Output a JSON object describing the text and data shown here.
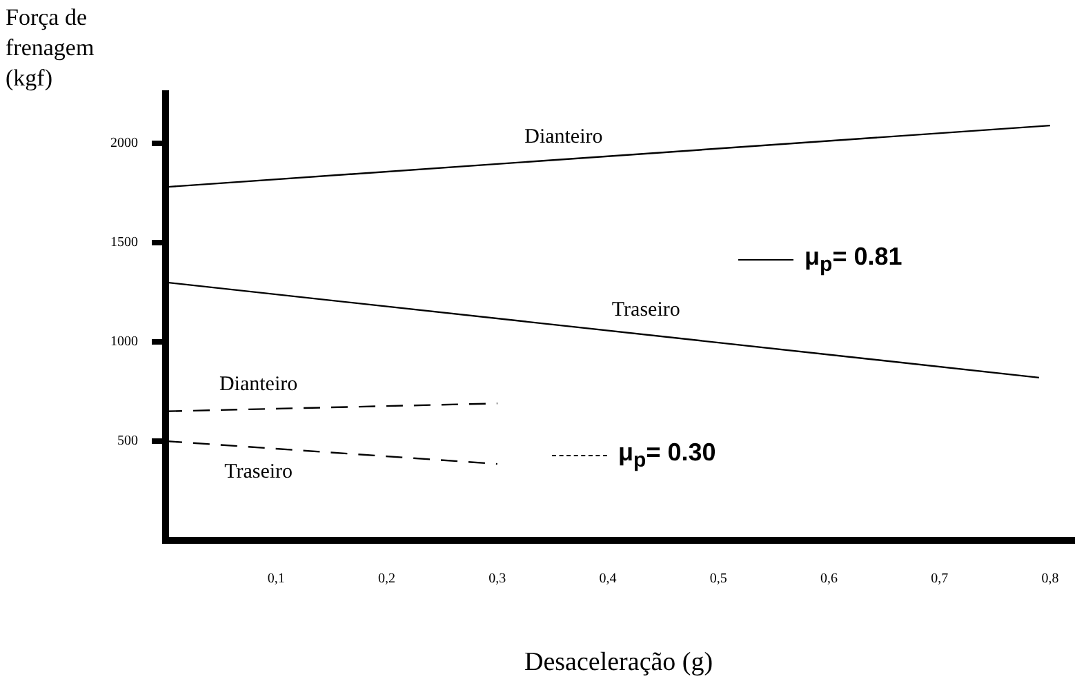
{
  "chart_data": {
    "type": "line",
    "xlabel": "Desaceleração  (g)",
    "ylabel": "Força de frenagem (kgf)",
    "xlim": [
      0,
      0.82
    ],
    "xticks": [
      {
        "value": 0.1,
        "label": "0,1"
      },
      {
        "value": 0.2,
        "label": "0,2"
      },
      {
        "value": 0.3,
        "label": "0,3"
      },
      {
        "value": 0.4,
        "label": "0,4"
      },
      {
        "value": 0.5,
        "label": "0,5"
      },
      {
        "value": 0.6,
        "label": "0,6"
      },
      {
        "value": 0.7,
        "label": "0,7"
      },
      {
        "value": 0.8,
        "label": "0,8"
      }
    ],
    "ylim": [
      0,
      2250
    ],
    "yticks": [
      500,
      1000,
      1500,
      2000
    ],
    "grid": false,
    "legend": false,
    "marker": "none",
    "series": [
      {
        "name": "Dianteiro",
        "color": "#000000",
        "line_style": "solid",
        "x": [
          0,
          0.8
        ],
        "values": [
          1780,
          2090
        ]
      },
      {
        "name": "Traseiro",
        "color": "#000000",
        "line_style": "solid",
        "x": [
          0,
          0.79
        ],
        "values": [
          1300,
          820
        ]
      },
      {
        "name": "Dianteiro",
        "color": "#000000",
        "line_style": "dashed",
        "x": [
          0,
          0.3
        ],
        "values": [
          650,
          690
        ]
      },
      {
        "name": "Traseiro",
        "color": "#000000",
        "line_style": "dashed",
        "x": [
          0,
          0.3
        ],
        "values": [
          500,
          385
        ]
      }
    ],
    "annotations": [
      "μ$_{p}$= 0.81",
      "μ$_{p}$= 0.30"
    ]
  }
}
